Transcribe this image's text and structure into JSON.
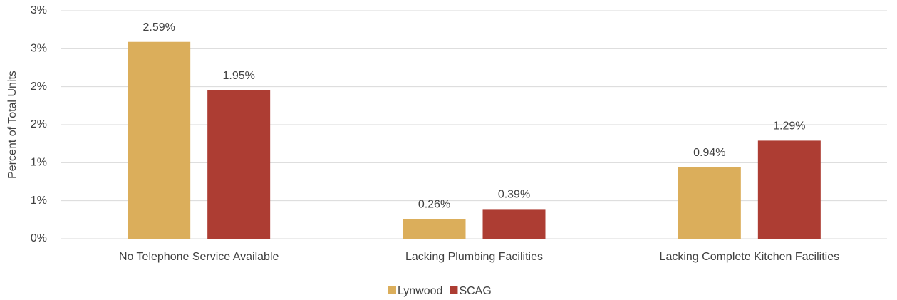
{
  "chart_data": {
    "type": "bar",
    "y_axis_label": "Percent of Total Units",
    "categories": [
      "No Telephone Service Available",
      "Lacking Plumbing Facilities",
      "Lacking Complete Kitchen Facilities"
    ],
    "series": [
      {
        "name": "Lynwood",
        "color": "#dbae5b",
        "values": [
          2.59,
          0.26,
          0.94
        ],
        "value_labels": [
          "2.59%",
          "0.26%",
          "0.94%"
        ]
      },
      {
        "name": "SCAG",
        "color": "#ad3d33",
        "values": [
          1.95,
          0.39,
          1.29
        ],
        "value_labels": [
          "1.95%",
          "0.39%",
          "1.29%"
        ]
      }
    ],
    "ylim": [
      0,
      3
    ],
    "yticks": [
      {
        "value": 0,
        "label": "0%"
      },
      {
        "value": 0.5,
        "label": "1%"
      },
      {
        "value": 1,
        "label": "1%"
      },
      {
        "value": 1.5,
        "label": "2%"
      },
      {
        "value": 2,
        "label": "2%"
      },
      {
        "value": 2.5,
        "label": "3%"
      },
      {
        "value": 3,
        "label": "3%"
      }
    ],
    "grid": true,
    "legend": "bottom"
  }
}
